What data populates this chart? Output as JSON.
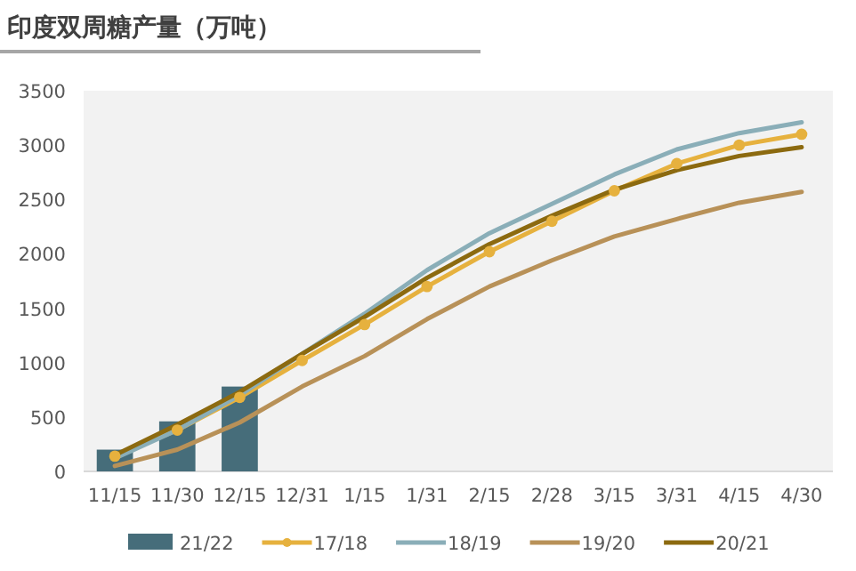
{
  "chart_data": {
    "type": "line",
    "title": "印度双周糖产量（万吨）",
    "categories": [
      "11/15",
      "11/30",
      "12/15",
      "12/31",
      "1/15",
      "1/31",
      "2/15",
      "2/28",
      "3/15",
      "3/31",
      "4/15",
      "4/30"
    ],
    "ylim": [
      0,
      3500
    ],
    "yticks": [
      0,
      500,
      1000,
      1500,
      2000,
      2500,
      3000,
      3500
    ],
    "grid": false,
    "legend": "bottom",
    "series": [
      {
        "name": "21/22",
        "type": "bar",
        "color": "#466d7a",
        "values": [
          200,
          460,
          780,
          null,
          null,
          null,
          null,
          null,
          null,
          null,
          null,
          null
        ]
      },
      {
        "name": "17/18",
        "marker": "circle",
        "color": "#e6b13e",
        "values": [
          140,
          380,
          680,
          1020,
          1350,
          1700,
          2020,
          2300,
          2580,
          2830,
          3000,
          3100
        ]
      },
      {
        "name": "18/19",
        "color": "#8aaeb8",
        "values": [
          120,
          380,
          700,
          1080,
          1450,
          1850,
          2190,
          2460,
          2730,
          2960,
          3110,
          3210
        ]
      },
      {
        "name": "19/20",
        "color": "#b89158",
        "values": [
          50,
          200,
          450,
          780,
          1060,
          1400,
          1700,
          1940,
          2160,
          2320,
          2470,
          2570
        ]
      },
      {
        "name": "20/21",
        "color": "#8c6a10",
        "values": [
          150,
          430,
          730,
          1080,
          1420,
          1780,
          2090,
          2350,
          2590,
          2770,
          2900,
          2980
        ]
      }
    ]
  }
}
